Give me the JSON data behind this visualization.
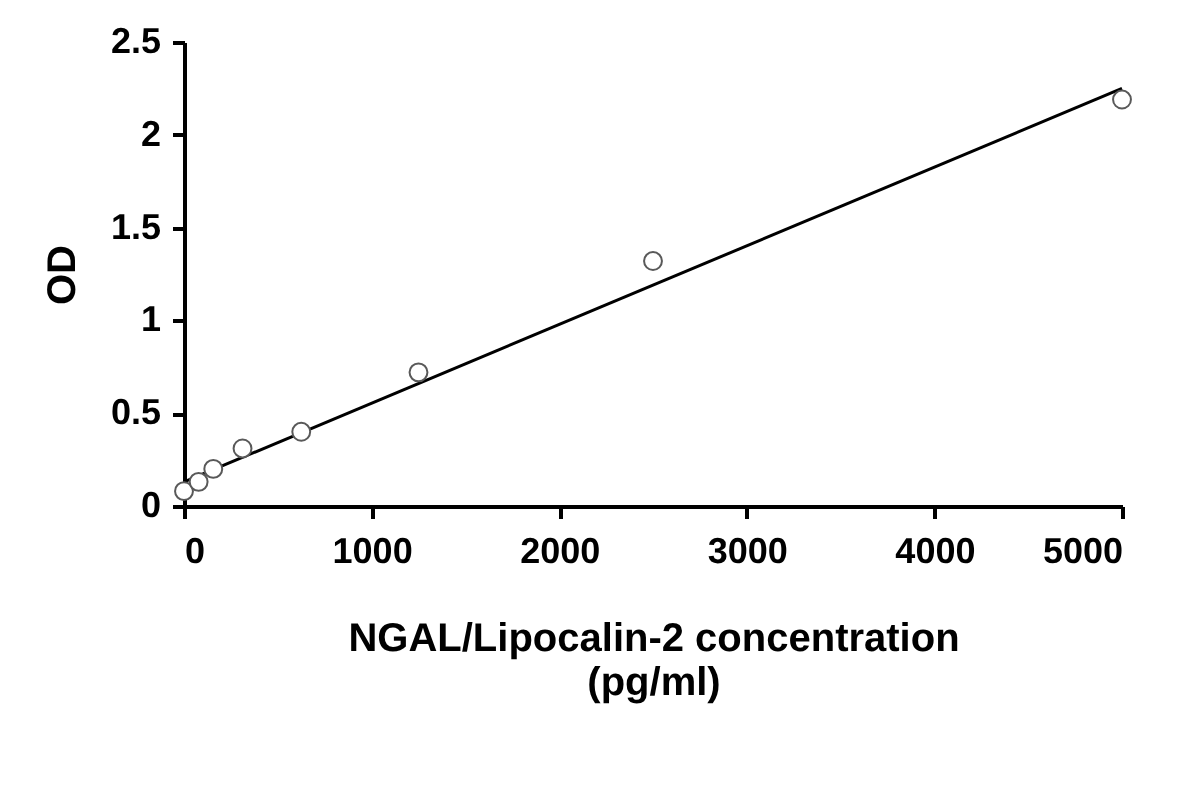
{
  "chart_data": {
    "type": "scatter",
    "xlabel": "NGAL/Lipocalin-2 concentration\n(pg/ml)",
    "ylabel": "OD",
    "series": [
      {
        "color": "#595959",
        "x": [
          0,
          78,
          156,
          312,
          625,
          1250,
          2500,
          5000
        ],
        "values": [
          0.08,
          0.13,
          0.2,
          0.31,
          0.4,
          0.72,
          1.32,
          2.19
        ]
      },
      {
        "type": "line",
        "marker": "none",
        "color": "#000000",
        "x": [
          0,
          5000
        ],
        "values": [
          0.13,
          2.25
        ]
      }
    ],
    "xlim": [
      0,
      5000
    ],
    "xticks": [
      0,
      1000,
      2000,
      3000,
      4000,
      5000
    ],
    "ylim": [
      0,
      2.5
    ],
    "yticks": [
      0,
      0.5,
      1,
      1.5,
      2,
      2.5
    ],
    "marker": "circle",
    "line_style": "solid",
    "grid": false
  }
}
